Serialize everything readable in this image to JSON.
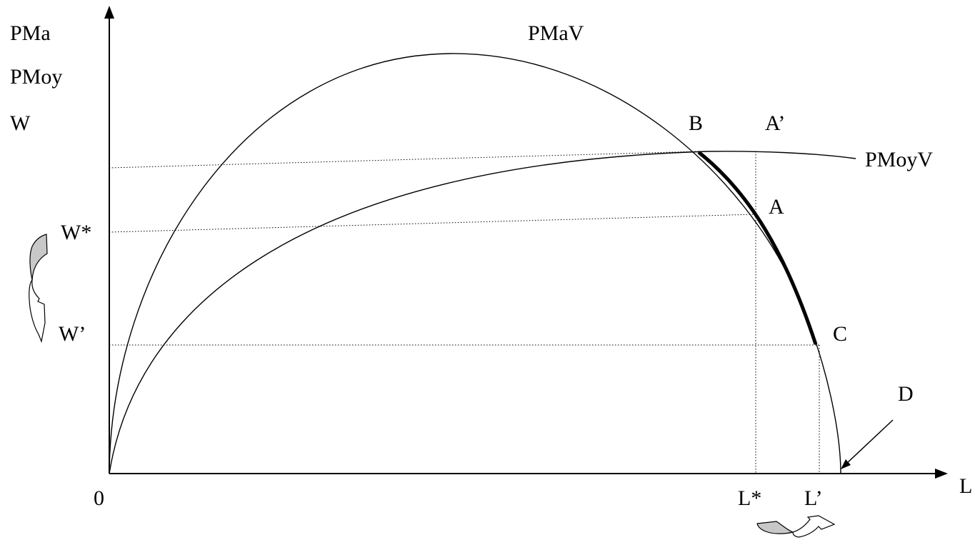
{
  "labels": {
    "y_axis_1": "PMa",
    "y_axis_2": "PMoy",
    "y_axis_3": "W",
    "origin": "0",
    "x_axis": "L",
    "pmav": "PMaV",
    "pmoyv": "PMoyV",
    "point_b": "B",
    "point_a_prime": "A’",
    "point_a": "A",
    "point_c": "C",
    "point_d": "D",
    "w_star": "W*",
    "w_prime": "W’",
    "l_star": "L*",
    "l_prime": "L’"
  },
  "colors": {
    "line": "#000000",
    "arrow_fill_gray": "#c8c8c8",
    "arrow_fill_white": "#ffffff",
    "background": "#ffffff"
  }
}
